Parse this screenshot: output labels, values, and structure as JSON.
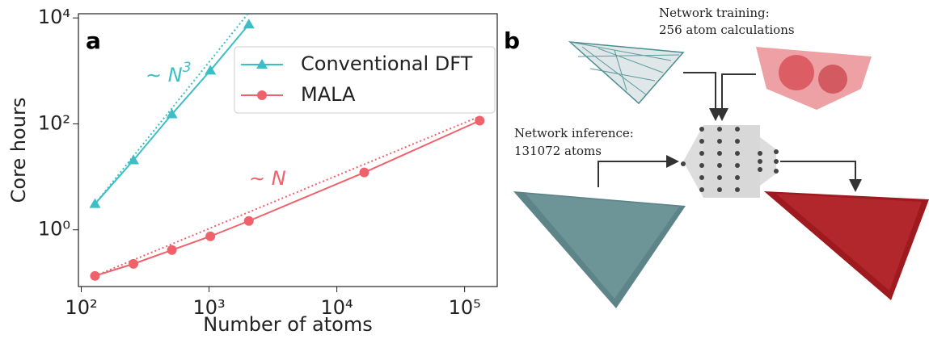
{
  "chart_data": {
    "type": "line",
    "panel_label": "a",
    "x_label": "Number of atoms",
    "y_label": "Core hours",
    "log_x": true,
    "log_y": true,
    "xlim": [
      95,
      180000
    ],
    "ylim": [
      0.085,
      12000
    ],
    "xticks": [
      {
        "value": 100,
        "label": "10²"
      },
      {
        "value": 1000,
        "label": "10³"
      },
      {
        "value": 10000,
        "label": "10⁴"
      },
      {
        "value": 100000,
        "label": "10⁵"
      }
    ],
    "yticks": [
      {
        "value": 1,
        "label": "10⁰"
      },
      {
        "value": 100,
        "label": "10²"
      },
      {
        "value": 10000,
        "label": "10⁴"
      }
    ],
    "legend": "upper right",
    "series": [
      {
        "name": "Conventional DFT",
        "color": "#3bbfc4",
        "marker": "triangle",
        "x": [
          128,
          256,
          512,
          1024,
          2048
        ],
        "values": [
          3.08,
          20.6,
          152,
          1018,
          7550
        ]
      },
      {
        "name": "MALA",
        "color": "#f0626b",
        "marker": "circle",
        "x": [
          128,
          256,
          512,
          1024,
          2048,
          16384,
          131072
        ],
        "values": [
          0.135,
          0.228,
          0.415,
          0.755,
          1.47,
          12.1,
          115
        ]
      }
    ],
    "reference_lines": [
      {
        "color": "#3bbfc4",
        "x": [
          128,
          2048
        ],
        "values": [
          3.08,
          12616
        ]
      },
      {
        "color": "#f0626b",
        "x": [
          128,
          131072
        ],
        "values": [
          0.135,
          138
        ]
      }
    ],
    "annotations": [
      {
        "text": "∼ N",
        "exponent": "3",
        "color": "#3bbfc4"
      },
      {
        "text": "∼ N",
        "color": "#f0626b"
      }
    ]
  },
  "panel_b": {
    "panel_label": "b",
    "training": [
      "Network training:",
      "256 atom calculations"
    ],
    "inference": [
      "Network inference:",
      "131072 atoms"
    ]
  }
}
